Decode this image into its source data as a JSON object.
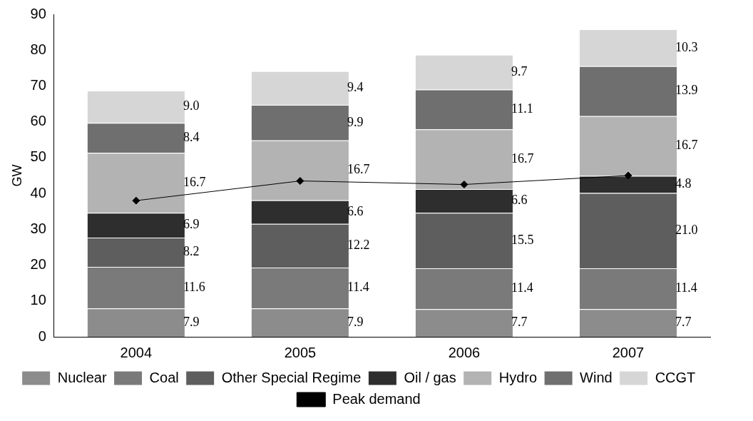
{
  "chart_data": {
    "type": "bar",
    "stacked": true,
    "ylabel": "GW",
    "categories": [
      "2004",
      "2005",
      "2006",
      "2007"
    ],
    "series": [
      {
        "name": "Nuclear",
        "color": "#8c8c8c",
        "values": [
          7.9,
          7.9,
          7.7,
          7.7
        ],
        "value_labels": [
          "7.9",
          "7.9",
          "7.7",
          "7.7"
        ]
      },
      {
        "name": "Coal",
        "color": "#7a7a7a",
        "values": [
          11.6,
          11.4,
          11.4,
          11.4
        ],
        "value_labels": [
          "11.6",
          "11.4",
          "11.4",
          "11.4"
        ]
      },
      {
        "name": "Other Special Regime",
        "color": "#5e5e5e",
        "values": [
          8.2,
          12.2,
          15.5,
          21.0
        ],
        "value_labels": [
          "8.2",
          "12.2",
          "15.5",
          "21.0"
        ]
      },
      {
        "name": "Oil / gas",
        "color": "#2e2e2e",
        "values": [
          6.9,
          6.6,
          6.6,
          4.8
        ],
        "value_labels": [
          "6.9",
          "6.6",
          "6.6",
          "4.8"
        ]
      },
      {
        "name": "Hydro",
        "color": "#b3b3b3",
        "values": [
          16.7,
          16.7,
          16.7,
          16.7
        ],
        "value_labels": [
          "16.7",
          "16.7",
          "16.7",
          "16.7"
        ]
      },
      {
        "name": "Wind",
        "color": "#6f6f6f",
        "values": [
          8.4,
          9.9,
          11.1,
          13.9
        ],
        "value_labels": [
          "8.4",
          "9.9",
          "11.1",
          "13.9"
        ]
      },
      {
        "name": "CCGT",
        "color": "#d6d6d6",
        "values": [
          9.0,
          9.4,
          9.7,
          10.3
        ],
        "value_labels": [
          "9.0",
          "9.4",
          "9.7",
          "10.3"
        ]
      },
      {
        "name": "Peak demand",
        "type": "line",
        "color": "#000000",
        "marker": "diamond",
        "values": [
          38,
          43.5,
          42.5,
          45
        ]
      }
    ],
    "ylim": [
      0,
      90
    ],
    "yticks": [
      0,
      10,
      20,
      30,
      40,
      50,
      60,
      70,
      80,
      90
    ],
    "grid": false,
    "legend": "bottom"
  }
}
